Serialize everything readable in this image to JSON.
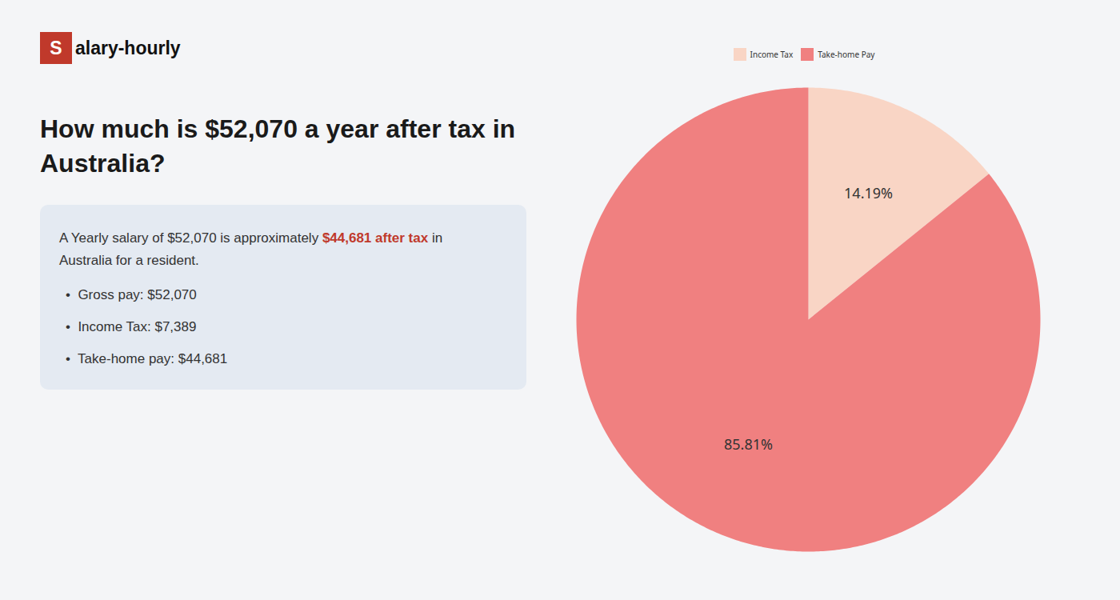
{
  "chart_data": {
    "type": "pie",
    "title": "How much is $52,070 a year after tax in Australia?",
    "categories": [
      "Income Tax",
      "Take-home Pay"
    ],
    "values": [
      14.19,
      85.81
    ],
    "value_labels": [
      "14.19%",
      "85.81%"
    ],
    "colors": [
      "#f9d5c5",
      "#f08080"
    ],
    "data_labels": true,
    "legend": "top",
    "annotations": [
      {
        "text": "S",
        "color": "#c0392b"
      },
      {
        "text": "alary-hourly"
      },
      {
        "text": "A Yearly salary of $52,070 is approximately "
      },
      {
        "text": "$44,681 after tax",
        "color": "#c0392b"
      },
      {
        "text": " in"
      },
      {
        "text": "Australia for a resident."
      },
      {
        "text": "•  Gross pay: $52,070"
      },
      {
        "text": "•  Income Tax: $7,389"
      },
      {
        "text": "•  Take-home pay: $44,681"
      }
    ]
  }
}
